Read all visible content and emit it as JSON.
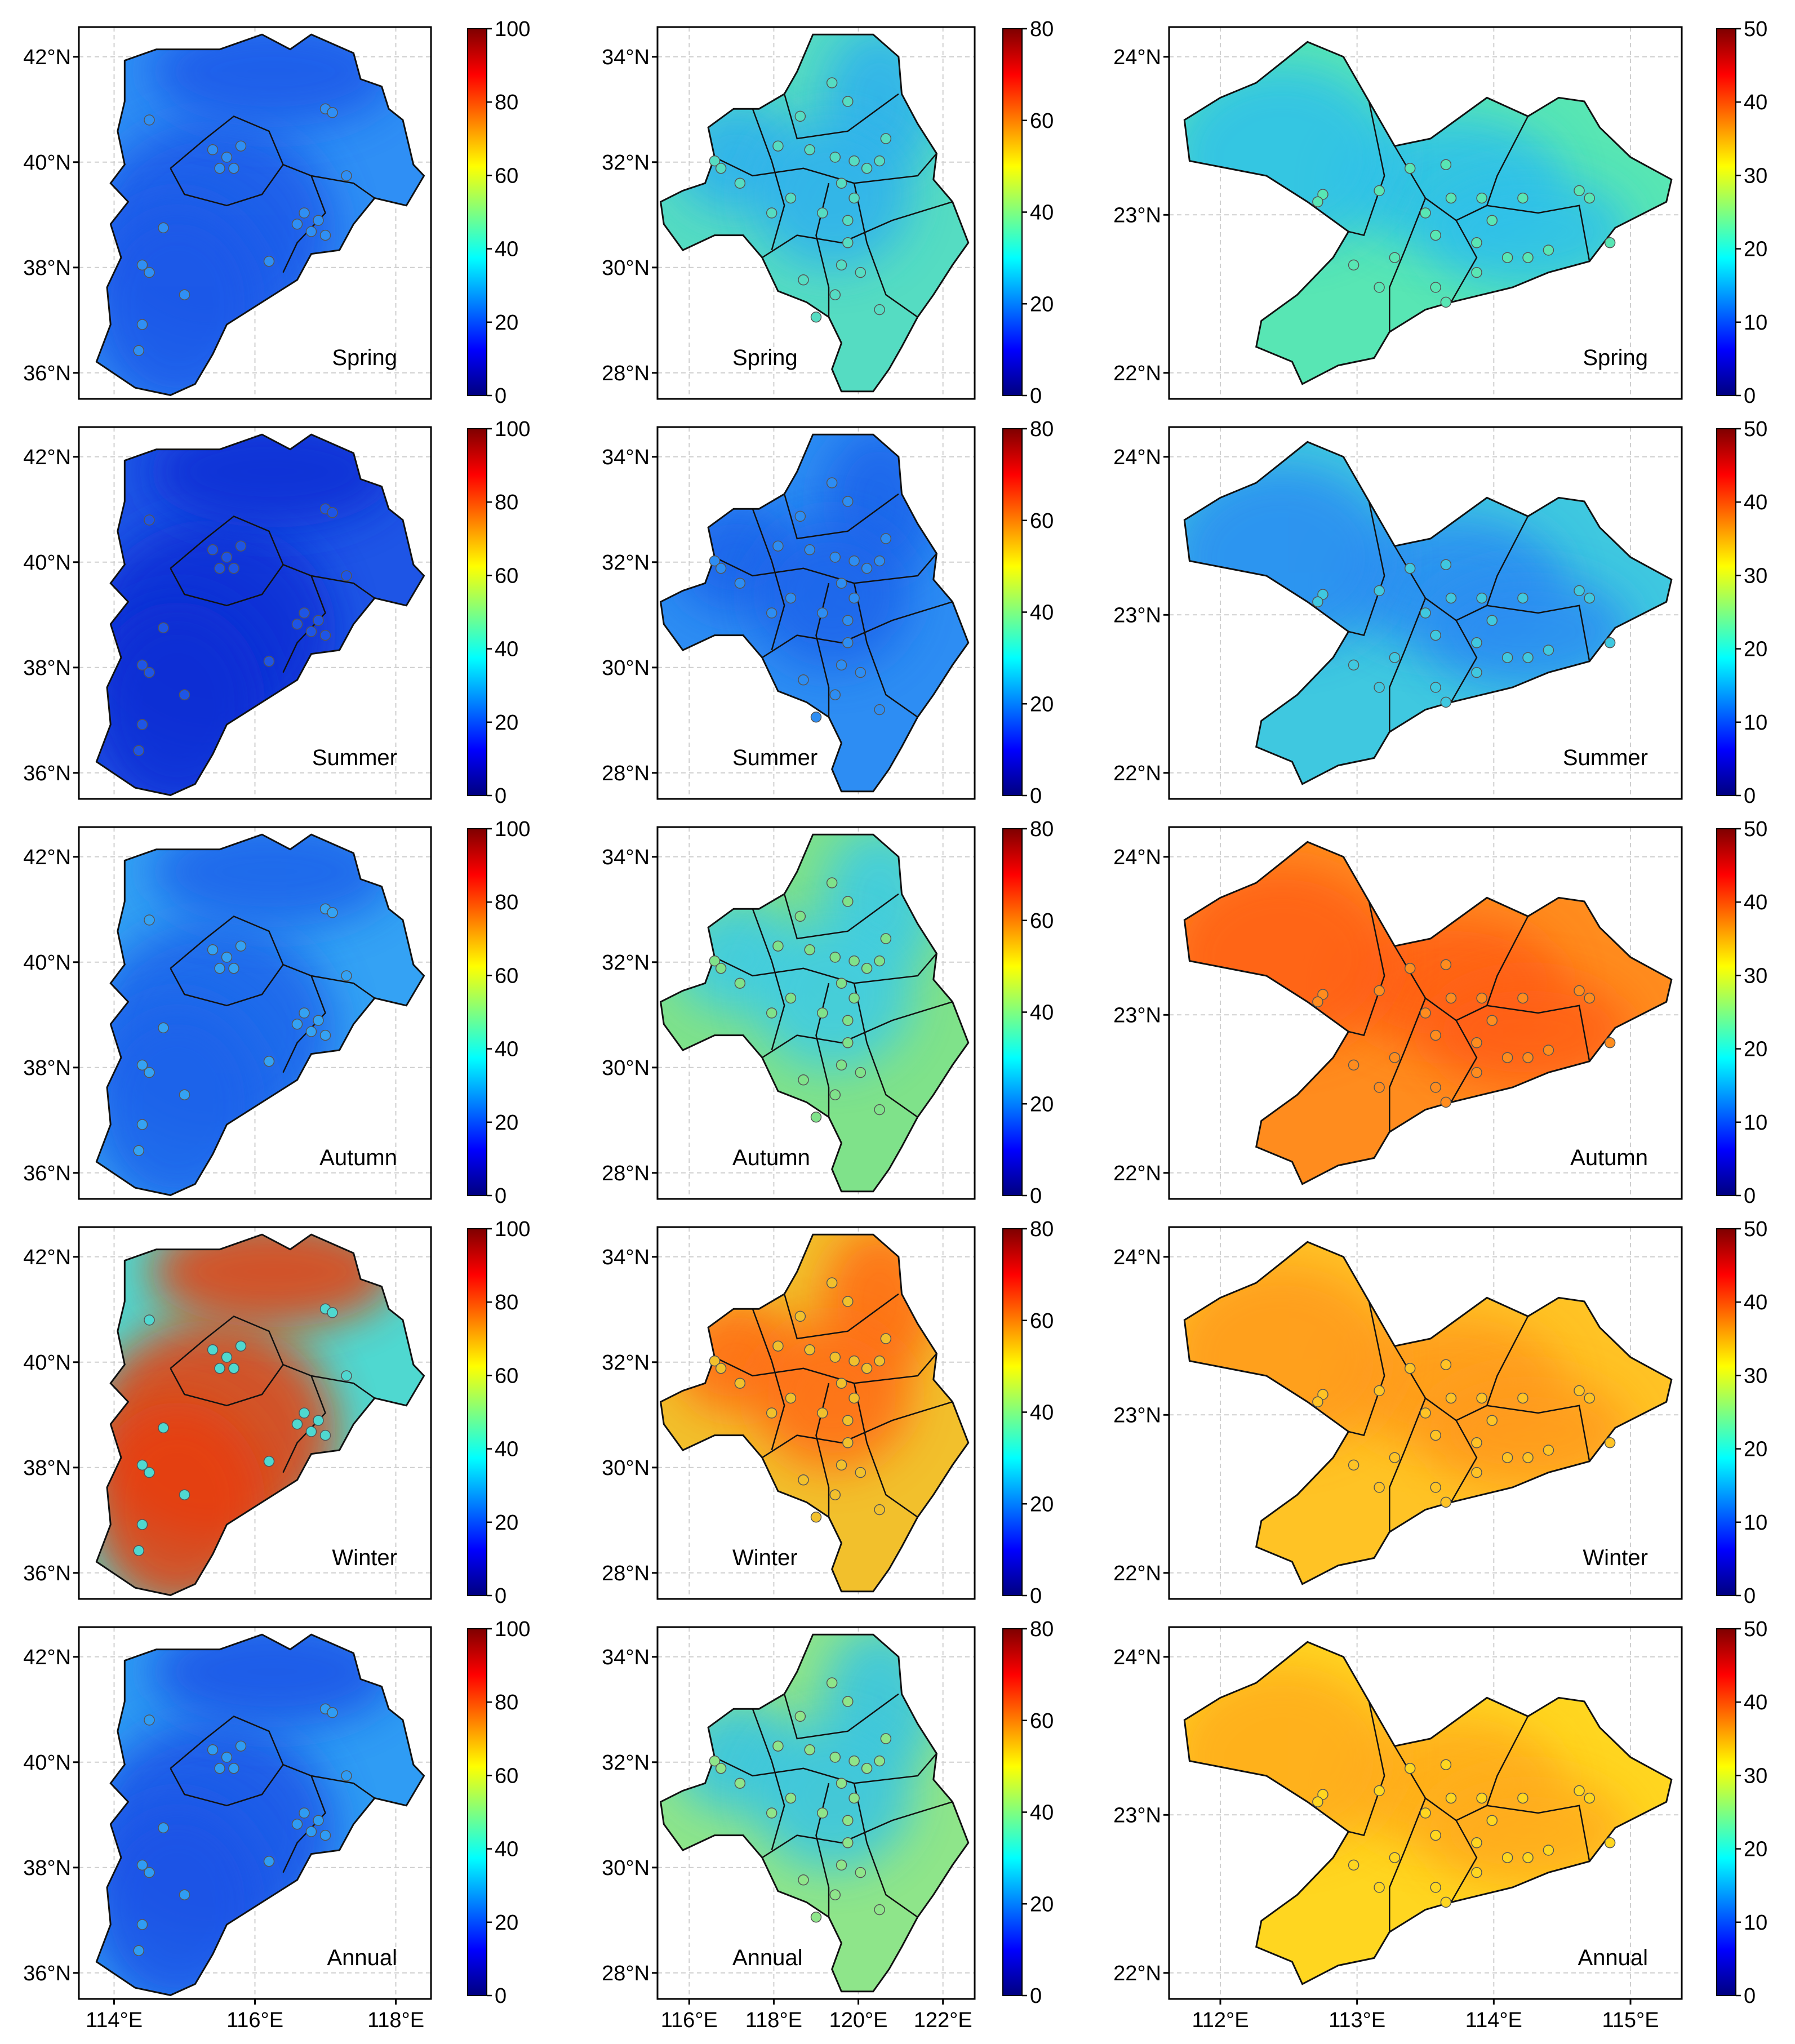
{
  "figure": {
    "columns": [
      {
        "id": "col-1",
        "lat_ticks": [
          "36°N",
          "38°N",
          "40°N",
          "42°N"
        ],
        "lon_ticks": [
          "114°E",
          "116°E",
          "118°E"
        ],
        "colorbar_ticks": [
          "0",
          "20",
          "40",
          "60",
          "80",
          "100"
        ],
        "colorbar_range": [
          0,
          100
        ]
      },
      {
        "id": "col-2",
        "lat_ticks": [
          "28°N",
          "30°N",
          "32°N",
          "34°N"
        ],
        "lon_ticks": [
          "116°E",
          "118°E",
          "120°E",
          "122°E"
        ],
        "colorbar_ticks": [
          "0",
          "20",
          "40",
          "60",
          "80"
        ],
        "colorbar_range": [
          0,
          80
        ]
      },
      {
        "id": "col-3",
        "lat_ticks": [
          "22°N",
          "23°N",
          "24°N"
        ],
        "lon_ticks": [
          "112°E",
          "113°E",
          "114°E",
          "115°E"
        ],
        "colorbar_ticks": [
          "0",
          "10",
          "20",
          "30",
          "40",
          "50"
        ],
        "colorbar_range": [
          0,
          50
        ]
      }
    ],
    "rows": [
      {
        "season": "Spring",
        "fills": [
          "#2f8ff5",
          "#55dcc2",
          "#58e6b4"
        ],
        "accents": [
          "#1f58e8",
          "#2fb0ee",
          "#2fc0ea"
        ]
      },
      {
        "season": "Summer",
        "fills": [
          "#1e55e6",
          "#2d8df3",
          "#3fc8e0"
        ],
        "accents": [
          "#0f2fd4",
          "#1a64ea",
          "#2a8cf2"
        ]
      },
      {
        "season": "Autumn",
        "fills": [
          "#34a2f4",
          "#7fe28a",
          "#ff8c1e"
        ],
        "accents": [
          "#1f62ea",
          "#3dcbe6",
          "#ff5e14"
        ]
      },
      {
        "season": "Winter",
        "fills": [
          "#4fd8d0",
          "#f2c02c",
          "#ffc325"
        ],
        "accents": [
          "#e83d10",
          "#ff6a16",
          "#ff9a1c"
        ]
      },
      {
        "season": "Annual",
        "fills": [
          "#2f9cf4",
          "#8ee58a",
          "#ffd620"
        ],
        "accents": [
          "#1a52e6",
          "#37c4e4",
          "#ffab1c"
        ]
      }
    ],
    "colormap": [
      "#00007f",
      "#0000ff",
      "#007fff",
      "#00ffff",
      "#7fff7f",
      "#ffff00",
      "#ff7f00",
      "#ff0000",
      "#7f0000"
    ]
  }
}
